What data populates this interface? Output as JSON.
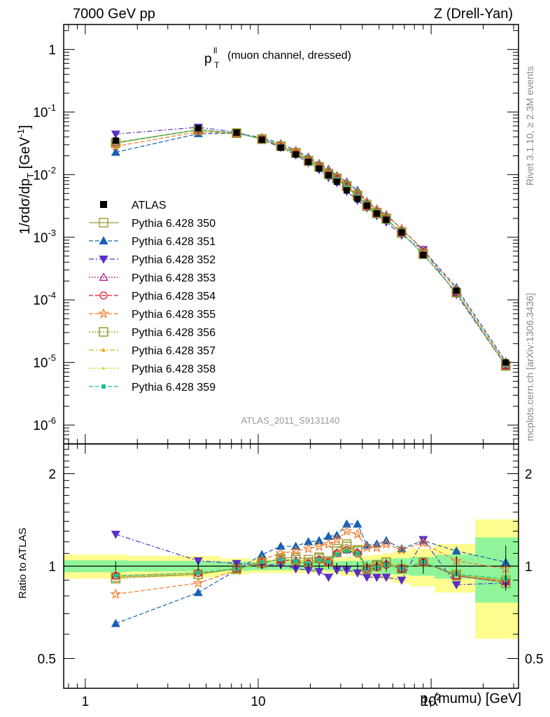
{
  "header": {
    "left": "7000 GeV pp",
    "right": "Z (Drell-Yan)"
  },
  "side": {
    "rivet": "Rivet 3.1.10, ≥ 2.3M events",
    "mcplots": "mcplots.cern.ch [arXiv:1306.3436]"
  },
  "analysis_tag": "ATLAS_2011_S9131140",
  "chart_data": [
    {
      "type": "scatter",
      "title": "p_T^ll (muon channel, dressed)",
      "xlabel": "p_T(mumu) [GeV]",
      "ylabel": "1/σdσ/dp_T [GeV^-1]",
      "x_scale": "log",
      "y_scale": "log",
      "xlim": [
        0.75,
        320
      ],
      "ylim": [
        5e-07,
        2.5
      ],
      "x_tick_labels": [
        "1",
        "10",
        "10^2"
      ],
      "y_tick_labels": [
        "10^-6",
        "10^-5",
        "10^-4",
        "10^-3",
        "10^-2",
        "10^-1",
        "1"
      ],
      "legend_position": "center-left",
      "x": [
        1.5,
        4.5,
        7.5,
        10.5,
        13.5,
        16.5,
        19.5,
        22.5,
        25.5,
        28.5,
        32.5,
        37.5,
        42.5,
        48.5,
        55,
        67.5,
        90,
        140,
        270
      ],
      "data": {
        "name": "ATLAS",
        "values": [
          0.035,
          0.055,
          0.047,
          0.036,
          0.027,
          0.021,
          0.016,
          0.0125,
          0.0098,
          0.0077,
          0.0056,
          0.0041,
          0.0032,
          0.0024,
          0.0019,
          0.0012,
          0.00052,
          0.00014,
          1e-05
        ]
      },
      "series": [
        {
          "name": "Pythia 6.428 350",
          "color": "#a39a34",
          "marker": "square-open",
          "dash": "solid",
          "ratio": [
            0.92,
            0.94,
            0.98,
            1.02,
            1.06,
            1.07,
            1.05,
            1.07,
            1.04,
            1.14,
            1.18,
            1.13,
            0.98,
            1.01,
            1.03,
            0.98,
            1.03,
            0.94,
            0.9
          ]
        },
        {
          "name": "Pythia 6.428 351",
          "color": "#1660b8",
          "marker": "triangle-up",
          "dash": "dashed",
          "ratio": [
            0.65,
            0.82,
            0.97,
            1.09,
            1.16,
            1.16,
            1.2,
            1.21,
            1.25,
            1.26,
            1.37,
            1.37,
            1.17,
            1.18,
            1.21,
            1.14,
            1.21,
            1.12,
            1.03
          ]
        },
        {
          "name": "Pythia 6.428 352",
          "color": "#5a2ec7",
          "marker": "triangle-down",
          "dash": "dashdot",
          "ratio": [
            1.27,
            1.04,
            1.02,
            1.01,
            1.01,
            0.98,
            0.97,
            0.96,
            0.92,
            0.97,
            0.97,
            0.95,
            0.92,
            0.92,
            0.92,
            0.9,
            1.22,
            0.87,
            0.88
          ]
        },
        {
          "name": "Pythia 6.428 353",
          "color": "#a51891",
          "marker": "triangle-up-open",
          "dash": "dotted",
          "ratio": [
            0.93,
            0.95,
            0.98,
            1.03,
            1.05,
            1.04,
            1.02,
            1.05,
            1.03,
            1.1,
            1.13,
            1.11,
            0.99,
            1.0,
            1.02,
            0.98,
            1.03,
            0.93,
            0.89
          ]
        },
        {
          "name": "Pythia 6.428 354",
          "color": "#e3152a",
          "marker": "circle-open",
          "dash": "dashed",
          "ratio": [
            0.93,
            0.95,
            0.98,
            1.03,
            1.05,
            1.03,
            1.02,
            1.05,
            1.03,
            1.1,
            1.13,
            1.1,
            0.98,
            0.99,
            1.01,
            0.98,
            1.03,
            0.93,
            0.89
          ]
        },
        {
          "name": "Pythia 6.428 355",
          "color": "#f07a28",
          "marker": "star-open",
          "dash": "dashed",
          "ratio": [
            0.81,
            0.88,
            0.97,
            1.05,
            1.1,
            1.12,
            1.14,
            1.16,
            1.18,
            1.22,
            1.3,
            1.27,
            1.15,
            1.15,
            1.18,
            1.13,
            1.19,
            1.04,
            0.98
          ]
        },
        {
          "name": "Pythia 6.428 356",
          "color": "#8a9a1c",
          "marker": "square-open",
          "dash": "dotted",
          "ratio": [
            0.91,
            0.94,
            0.98,
            1.03,
            1.05,
            1.05,
            1.03,
            1.06,
            1.03,
            1.12,
            1.16,
            1.12,
            0.98,
            1.0,
            1.03,
            0.98,
            1.03,
            0.93,
            0.88
          ]
        },
        {
          "name": "Pythia 6.428 357",
          "color": "#dcb41c",
          "marker": "tri-small",
          "dash": "dashdot",
          "ratio": [
            0.93,
            0.95,
            0.98,
            1.03,
            1.05,
            1.04,
            1.02,
            1.05,
            1.03,
            1.1,
            1.14,
            1.11,
            0.98,
            1.0,
            1.02,
            0.98,
            1.03,
            0.94,
            0.9
          ]
        },
        {
          "name": "Pythia 6.428 358",
          "color": "#c6d41a",
          "marker": "dot-small",
          "dash": "dotted",
          "ratio": [
            0.93,
            0.95,
            0.98,
            1.03,
            1.05,
            1.04,
            1.02,
            1.05,
            1.03,
            1.1,
            1.13,
            1.11,
            0.98,
            1.0,
            1.02,
            0.98,
            1.03,
            0.94,
            0.9
          ]
        },
        {
          "name": "Pythia 6.428 359",
          "color": "#1abf8e",
          "marker": "square-small",
          "dash": "dashed",
          "ratio": [
            0.93,
            0.95,
            0.98,
            1.03,
            1.05,
            1.04,
            1.02,
            1.05,
            1.03,
            1.09,
            1.12,
            1.1,
            0.98,
            0.99,
            1.01,
            0.98,
            1.03,
            0.94,
            0.91
          ]
        }
      ]
    },
    {
      "type": "scatter",
      "ylabel": "Ratio to ATLAS",
      "x_scale": "log",
      "y_scale": "log",
      "ylim": [
        0.4,
        2.5
      ],
      "y_tick_labels": [
        "0.5",
        "1",
        "2"
      ],
      "uncertainty_band_edges": [
        0.75,
        1.75,
        6,
        9,
        12,
        15,
        18,
        21,
        24,
        27,
        30,
        35,
        40,
        45,
        52,
        60,
        75,
        105,
        180,
        320
      ],
      "stat_band": [
        0.045,
        0.04,
        0.035,
        0.03,
        0.03,
        0.03,
        0.03,
        0.03,
        0.03,
        0.035,
        0.04,
        0.04,
        0.045,
        0.05,
        0.055,
        0.06,
        0.07,
        0.09,
        0.24
      ],
      "total_band": [
        0.09,
        0.08,
        0.06,
        0.05,
        0.05,
        0.05,
        0.05,
        0.05,
        0.05,
        0.06,
        0.07,
        0.07,
        0.08,
        0.09,
        0.1,
        0.12,
        0.14,
        0.18,
        0.42
      ]
    }
  ]
}
